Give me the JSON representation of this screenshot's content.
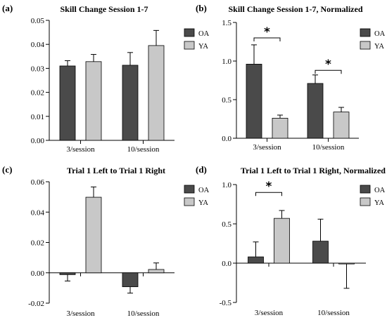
{
  "chart_data": [
    {
      "type": "bar",
      "panel_label": "(a)",
      "title": "Skill Change Session 1-7",
      "categories": [
        "3/session",
        "10/session"
      ],
      "series": [
        {
          "name": "OA",
          "color": "#4a4a4a",
          "values": [
            0.031,
            0.0313
          ],
          "errors": [
            0.0022,
            0.0053
          ]
        },
        {
          "name": "YA",
          "color": "#c8c8c8",
          "values": [
            0.0328,
            0.0395
          ],
          "errors": [
            0.003,
            0.0063
          ]
        }
      ],
      "ylim": [
        0,
        0.05
      ],
      "yticks": [
        "0.00",
        "0.01",
        "0.02",
        "0.03",
        "0.04",
        "0.05"
      ],
      "ytick_values": [
        0,
        0.01,
        0.02,
        0.03,
        0.04,
        0.05
      ],
      "legend_position": "top-right",
      "significance": []
    },
    {
      "type": "bar",
      "panel_label": "(b)",
      "title": "Skill Change Session 1-7, Normalized",
      "categories": [
        "3/session",
        "10/session"
      ],
      "series": [
        {
          "name": "OA",
          "color": "#4a4a4a",
          "values": [
            0.96,
            0.71
          ],
          "errors": [
            0.25,
            0.11
          ]
        },
        {
          "name": "YA",
          "color": "#c8c8c8",
          "values": [
            0.26,
            0.34
          ],
          "errors": [
            0.04,
            0.06
          ]
        }
      ],
      "ylim": [
        0,
        1.5
      ],
      "yticks": [
        "0.0",
        "0.5",
        "1.0",
        "1.5"
      ],
      "ytick_values": [
        0,
        0.5,
        1.0,
        1.5
      ],
      "legend_position": "top-right",
      "significance": [
        {
          "category_index": 0,
          "label": "*",
          "bracket_y": 1.3
        },
        {
          "category_index": 1,
          "label": "*",
          "bracket_y": 0.88
        }
      ]
    },
    {
      "type": "bar",
      "panel_label": "(c)",
      "title": "Trial 1 Left to Trial 1 Right",
      "categories": [
        "3/session",
        "10/session"
      ],
      "series": [
        {
          "name": "OA",
          "color": "#4a4a4a",
          "values": [
            -0.0012,
            -0.0092
          ],
          "errors": [
            0.0042,
            0.0042
          ]
        },
        {
          "name": "YA",
          "color": "#c8c8c8",
          "values": [
            0.0498,
            0.0022
          ],
          "errors": [
            0.0068,
            0.0043
          ]
        }
      ],
      "ylim": [
        -0.02,
        0.06
      ],
      "yticks": [
        "-0.02",
        "0.00",
        "0.02",
        "0.04",
        "0.06"
      ],
      "ytick_values": [
        -0.02,
        0,
        0.02,
        0.04,
        0.06
      ],
      "legend_position": "top-right",
      "significance": []
    },
    {
      "type": "bar",
      "panel_label": "(d)",
      "title": "Trial 1 Left to Trial 1 Right, Normalized",
      "categories": [
        "3/session",
        "10/session"
      ],
      "series": [
        {
          "name": "OA",
          "color": "#4a4a4a",
          "values": [
            0.08,
            0.28
          ],
          "errors": [
            0.19,
            0.28
          ]
        },
        {
          "name": "YA",
          "color": "#c8c8c8",
          "values": [
            0.57,
            -0.01
          ],
          "errors": [
            0.1,
            0.31
          ]
        }
      ],
      "ylim": [
        -0.5,
        1.0
      ],
      "yticks": [
        "-0.5",
        "0.0",
        "0.5",
        "1.0"
      ],
      "ytick_values": [
        -0.5,
        0,
        0.5,
        1.0
      ],
      "legend_position": "top-right",
      "significance": [
        {
          "category_index": 0,
          "label": "*",
          "bracket_y": 0.9
        }
      ]
    }
  ]
}
